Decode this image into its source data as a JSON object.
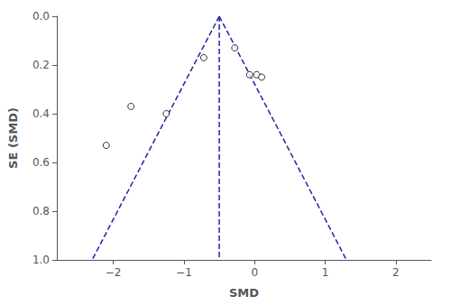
{
  "chart_data": {
    "type": "scatter",
    "xlabel": "SMD",
    "ylabel": "SE (SMD)",
    "xlim": [
      -2.8,
      2.5
    ],
    "ylim": [
      1.0,
      0.0
    ],
    "xticks": [
      {
        "value": -2,
        "label": "−2"
      },
      {
        "value": -1,
        "label": "−1"
      },
      0,
      1,
      2
    ],
    "yticks": [
      {
        "value": 0,
        "label": "0.0"
      },
      0.2,
      0.4,
      0.6,
      0.8,
      {
        "value": 1.0,
        "label": "1.0"
      }
    ],
    "grid": false,
    "series": [
      {
        "type": "line",
        "x": [
          -0.5,
          -2.3
        ],
        "values": [
          0.0,
          1.0
        ],
        "color": "#2222AA",
        "line_style": "dashed"
      },
      {
        "type": "line",
        "x": [
          -0.5,
          1.3
        ],
        "values": [
          0.0,
          1.0
        ],
        "color": "#2222AA",
        "line_style": "dashed"
      },
      {
        "type": "line",
        "x": [
          -0.5,
          -0.5
        ],
        "values": [
          0.0,
          1.0
        ],
        "color": "#2222AA",
        "line_style": "dashed"
      },
      {
        "type": "scatter",
        "x": [
          -2.1,
          -1.75,
          -1.25,
          -0.72,
          -0.28,
          -0.07,
          0.03,
          0.1
        ],
        "values": [
          0.53,
          0.37,
          0.4,
          0.17,
          0.13,
          0.24,
          0.24,
          0.25
        ],
        "color": "black",
        "marker": "hollow circle"
      }
    ]
  }
}
